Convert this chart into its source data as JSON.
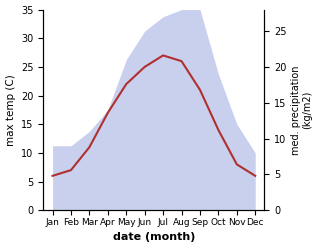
{
  "months": [
    "Jan",
    "Feb",
    "Mar",
    "Apr",
    "May",
    "Jun",
    "Jul",
    "Aug",
    "Sep",
    "Oct",
    "Nov",
    "Dec"
  ],
  "temp": [
    6,
    7,
    11,
    17,
    22,
    25,
    27,
    26,
    21,
    14,
    8,
    6
  ],
  "precip": [
    9,
    9,
    11,
    14,
    21,
    25,
    27,
    28,
    28,
    19,
    12,
    8
  ],
  "temp_color": "#b03030",
  "precip_fill_color": "#c8d0ee",
  "temp_ylim": [
    0,
    35
  ],
  "precip_ylim": [
    0,
    28
  ],
  "xlabel": "date (month)",
  "ylabel_left": "max temp (C)",
  "ylabel_right": "med. precipitation\n(kg/m2)",
  "right_ticks": [
    0,
    5,
    10,
    15,
    20,
    25
  ],
  "left_ticks": [
    0,
    5,
    10,
    15,
    20,
    25,
    30,
    35
  ],
  "background_color": "#ffffff"
}
